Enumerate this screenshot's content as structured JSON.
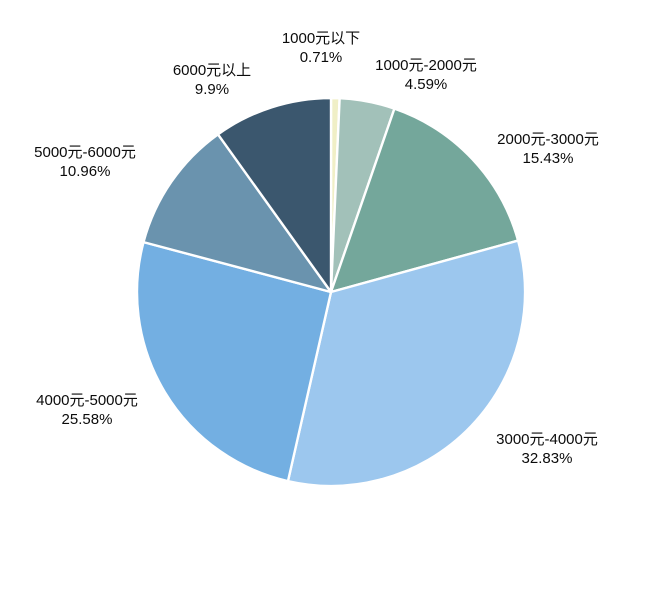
{
  "chart_data": {
    "type": "pie",
    "title": "",
    "categories": [
      "1000元以下",
      "1000元-2000元",
      "2000元-3000元",
      "3000元-4000元",
      "4000元-5000元",
      "5000元-6000元",
      "6000元以上"
    ],
    "values": [
      0.71,
      4.59,
      15.43,
      32.83,
      25.58,
      10.96,
      9.9
    ],
    "labels": [
      "0.71%",
      "4.59%",
      "15.43%",
      "32.83%",
      "25.58%",
      "10.96%",
      "9.9%"
    ],
    "colors": [
      "#f0efc6",
      "#a2c1b9",
      "#74a79b",
      "#9cc7ee",
      "#73afe2",
      "#6a93ae",
      "#3b576e"
    ],
    "start_angle_deg": 0,
    "direction": "clockwise",
    "slice_border_color": "#ffffff",
    "legend_position": "none",
    "label_placement": "outside, category name and percent on two lines",
    "background_color": "#ffffff"
  }
}
